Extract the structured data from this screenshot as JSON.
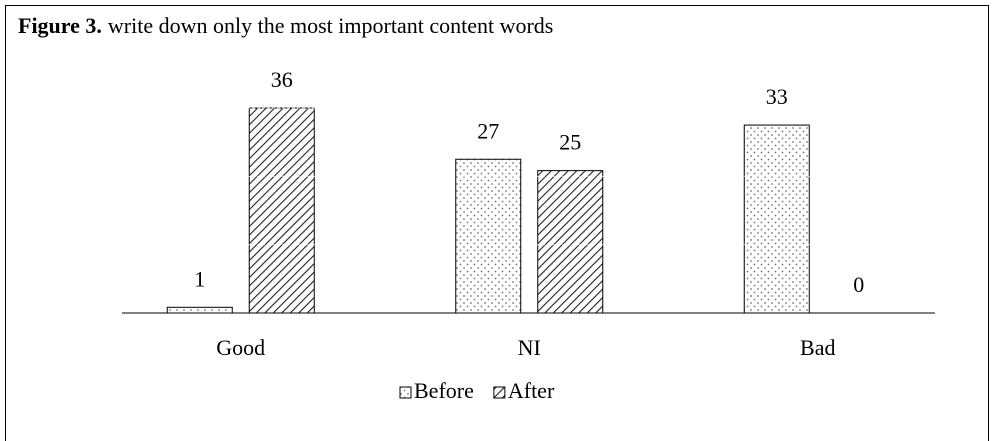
{
  "chart_data": {
    "type": "bar",
    "figure_label": "Figure 3.",
    "title": "write down only the most important content words",
    "categories": [
      "Good",
      "NI",
      "Bad"
    ],
    "series": [
      {
        "name": "Before",
        "color": "#000000",
        "pattern": "dots",
        "values": [
          1,
          27,
          33
        ]
      },
      {
        "name": "After",
        "color": "#000000",
        "pattern": "hatch",
        "values": [
          36,
          25,
          0
        ]
      }
    ],
    "ylim": [
      0,
      36
    ],
    "yticks": [
      0,
      12,
      24,
      36
    ],
    "grid": true,
    "legend": "bottom"
  }
}
